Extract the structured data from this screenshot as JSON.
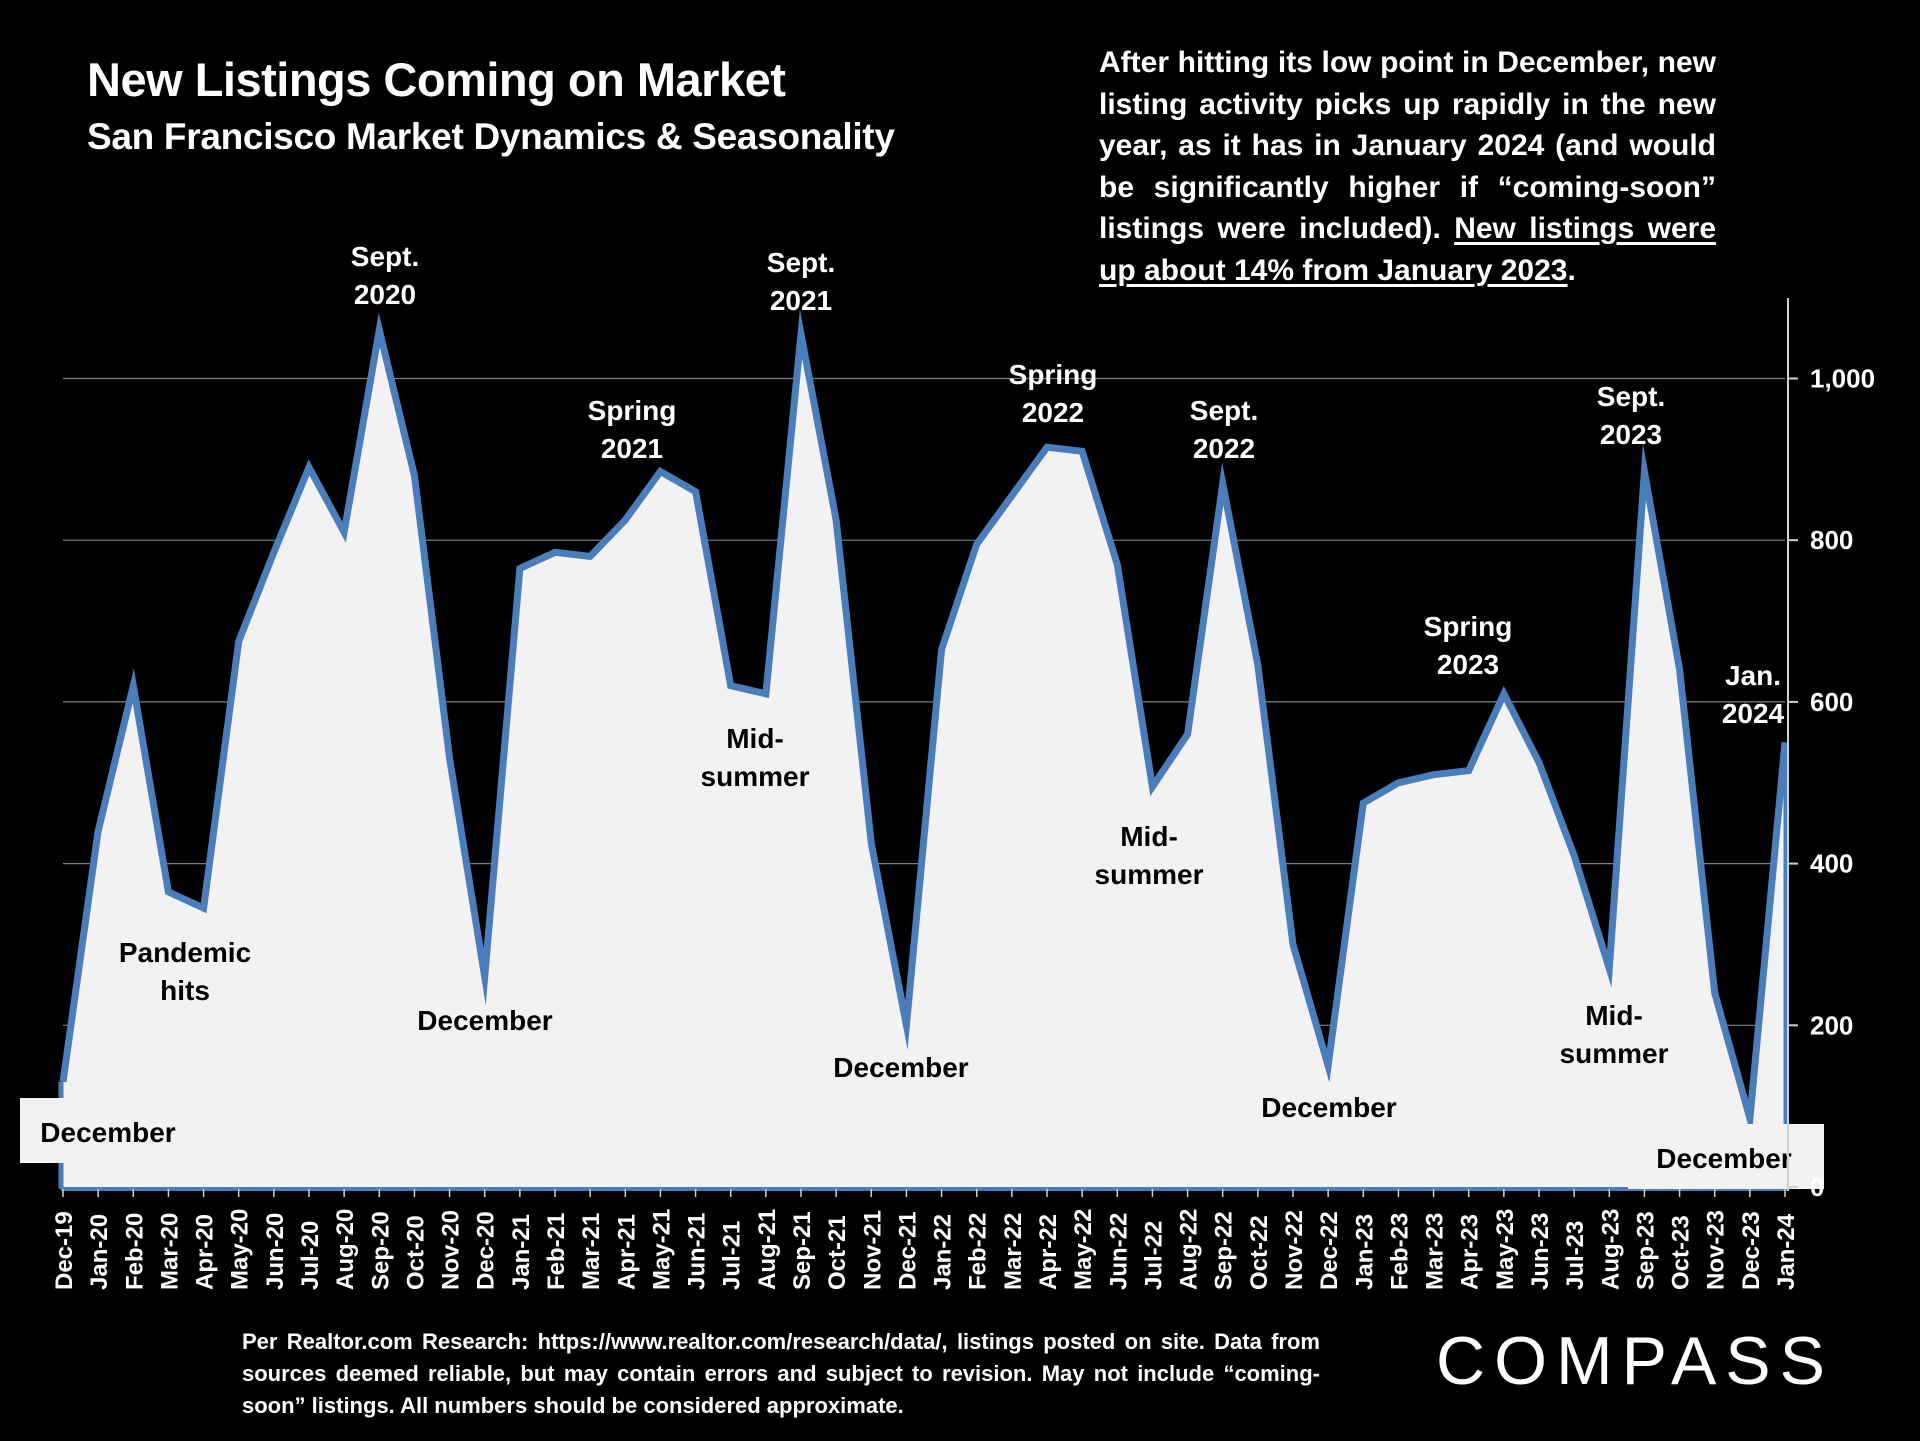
{
  "header": {
    "title": "New Listings Coming on Market",
    "subtitle": "San Francisco Market Dynamics & Seasonality"
  },
  "note": {
    "text": "After hitting its low point in December, new listing activity picks up rapidly in the new year, as it has in January 2024 (and would be significantly higher if “coming-soon” listings were included).",
    "highlight": "New listings were up about 14% from January 2023",
    "end": "."
  },
  "footer": {
    "source": "Per Realtor.com Research: https://www.realtor.com/research/data/, listings posted on site. Data from sources deemed reliable, but may contain errors and subject to revision. May not include “coming-soon” listings. All numbers should be considered approximate.",
    "logo": "COMPASS"
  },
  "colors": {
    "line": "#4A7EBB",
    "fill": "#F2F2F2",
    "background": "#000000",
    "text": "#FFFFFF"
  },
  "chart_data": {
    "type": "area",
    "title": "New Listings Coming on Market",
    "ylim": [
      0,
      1100
    ],
    "yticks": [
      0,
      200,
      400,
      600,
      800,
      1000
    ],
    "ytick_labels": [
      "0",
      "200",
      "400",
      "600",
      "800",
      "1,000"
    ],
    "grid": true,
    "y_axis_side": "right",
    "categories": [
      "Dec-19",
      "Jan-20",
      "Feb-20",
      "Mar-20",
      "Apr-20",
      "May-20",
      "Jun-20",
      "Jul-20",
      "Aug-20",
      "Sep-20",
      "Oct-20",
      "Nov-20",
      "Dec-20",
      "Jan-21",
      "Feb-21",
      "Mar-21",
      "Apr-21",
      "May-21",
      "Jun-21",
      "Jul-21",
      "Aug-21",
      "Sep-21",
      "Oct-21",
      "Nov-21",
      "Dec-21",
      "Jan-22",
      "Feb-22",
      "Mar-22",
      "Apr-22",
      "May-22",
      "Jun-22",
      "Jul-22",
      "Aug-22",
      "Sep-22",
      "Oct-22",
      "Nov-22",
      "Dec-22",
      "Jan-23",
      "Feb-23",
      "Mar-23",
      "Apr-23",
      "May-23",
      "Jun-23",
      "Jul-23",
      "Aug-23",
      "Sep-23",
      "Oct-23",
      "Nov-23",
      "Dec-23",
      "Jan-24"
    ],
    "series": [
      {
        "name": "New Listings",
        "values": [
          130,
          440,
          620,
          365,
          345,
          675,
          785,
          890,
          810,
          1060,
          880,
          530,
          260,
          765,
          785,
          780,
          825,
          885,
          860,
          620,
          610,
          1055,
          825,
          425,
          200,
          665,
          795,
          855,
          915,
          910,
          770,
          495,
          560,
          870,
          645,
          300,
          150,
          475,
          500,
          510,
          515,
          610,
          525,
          410,
          270,
          885,
          640,
          240,
          85,
          550
        ]
      }
    ],
    "annotations": [
      {
        "text": [
          "December"
        ],
        "index": 0
      },
      {
        "text": [
          "Pandemic",
          "hits"
        ],
        "index": 3
      },
      {
        "text": [
          "Sept.",
          "2020"
        ],
        "index": 9
      },
      {
        "text": [
          "December"
        ],
        "index": 12
      },
      {
        "text": [
          "Spring",
          "2021"
        ],
        "index": 16
      },
      {
        "text": [
          "Sept.",
          "2021"
        ],
        "index": 21
      },
      {
        "text": [
          "Mid-",
          "summer"
        ],
        "index": 20
      },
      {
        "text": [
          "December"
        ],
        "index": 24
      },
      {
        "text": [
          "Spring",
          "2022"
        ],
        "index": 28
      },
      {
        "text": [
          "Sept.",
          "2022"
        ],
        "index": 33
      },
      {
        "text": [
          "Mid-",
          "summer"
        ],
        "index": 31
      },
      {
        "text": [
          "December"
        ],
        "index": 36
      },
      {
        "text": [
          "Spring",
          "2023"
        ],
        "index": 41
      },
      {
        "text": [
          "Sept.",
          "2023"
        ],
        "index": 45
      },
      {
        "text": [
          "Mid-",
          "summer"
        ],
        "index": 44
      },
      {
        "text": [
          "December"
        ],
        "index": 48
      },
      {
        "text": [
          "Jan.",
          "2024"
        ],
        "index": 49
      }
    ]
  }
}
